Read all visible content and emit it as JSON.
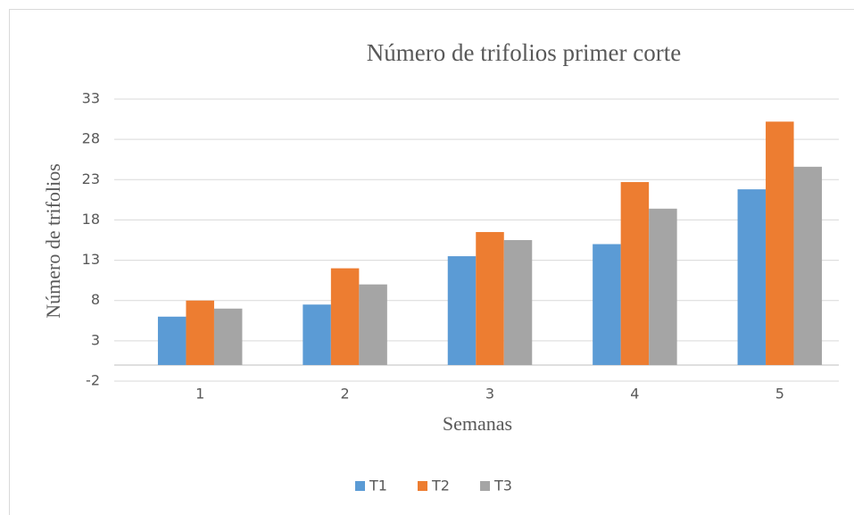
{
  "chart_data": {
    "type": "bar",
    "title": "Número de trifolios primer corte",
    "xlabel": "Semanas",
    "ylabel": "Número de trifolios",
    "categories": [
      "1",
      "2",
      "3",
      "4",
      "5"
    ],
    "series": [
      {
        "name": "T1",
        "color": "#5b9bd5",
        "values": [
          6,
          7.5,
          13.5,
          15,
          21.8
        ]
      },
      {
        "name": "T2",
        "color": "#ed7d31",
        "values": [
          8,
          12,
          16.5,
          22.7,
          30.2
        ]
      },
      {
        "name": "T3",
        "color": "#a5a5a5",
        "values": [
          7,
          10,
          15.5,
          19.4,
          24.6
        ]
      }
    ],
    "ylim": [
      -2,
      33
    ],
    "yticks": [
      -2,
      3,
      8,
      13,
      18,
      23,
      28,
      33
    ],
    "grid": true,
    "legend": "bottom"
  }
}
